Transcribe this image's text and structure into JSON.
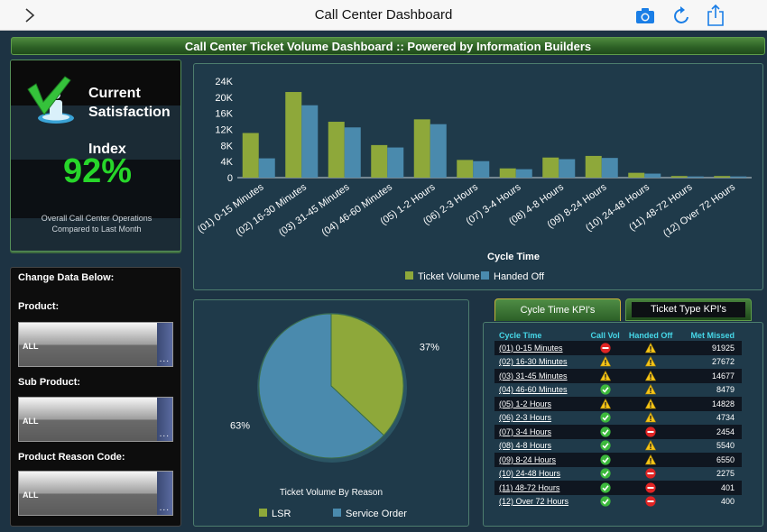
{
  "app": {
    "title": "Call Center Dashboard"
  },
  "banner": {
    "title": "Call Center Ticket Volume Dashboard :: Powered by Information Builders"
  },
  "satisfaction": {
    "line1": "Current",
    "line2": "Satisfaction",
    "line3": "Index",
    "value": "92%",
    "note1": "Overall Call Center Operations",
    "note2": "Compared to Last Month"
  },
  "filters": {
    "heading": "Change Data Below:",
    "product": {
      "label": "Product:",
      "selected": "ALL"
    },
    "sub_product": {
      "label": "Sub Product:",
      "selected": "ALL"
    },
    "reason_code": {
      "label": "Product Reason Code:",
      "selected": "ALL"
    },
    "more": "..."
  },
  "colors": {
    "green": "#8ea83a",
    "blue": "#4a8aad",
    "accent_green": "#27d62a",
    "header_cyan": "#46d7e8"
  },
  "chart_data": [
    {
      "type": "bar",
      "xlabel": "Cycle Time",
      "ylabel": "",
      "ylim": [
        0,
        24000
      ],
      "yticks": [
        "0",
        "4K",
        "8K",
        "12K",
        "16K",
        "20K",
        "24K"
      ],
      "grid": false,
      "legend": "bottom",
      "categories": [
        "(01) 0-15 Minutes",
        "(02) 16-30 Minutes",
        "(03) 31-45 Minutes",
        "(04) 46-60 Minutes",
        "(05) 1-2 Hours",
        "(06) 2-3 Hours",
        "(07) 3-4 Hours",
        "(08) 4-8 Hours",
        "(09) 8-24 Hours",
        "(10) 24-48 Hours",
        "(11) 48-72 Hours",
        "(12) Over 72 Hours"
      ],
      "series": [
        {
          "name": "Ticket Volume",
          "color": "#8ea83a",
          "values": [
            11100,
            21300,
            13900,
            8100,
            14500,
            4400,
            2300,
            5000,
            5400,
            1200,
            400,
            400
          ]
        },
        {
          "name": "Handed Off",
          "color": "#4a8aad",
          "values": [
            4800,
            18000,
            12500,
            7500,
            13300,
            4100,
            2100,
            4600,
            4900,
            1000,
            300,
            300
          ]
        }
      ]
    },
    {
      "type": "pie",
      "title": "Ticket Volume By Reason",
      "legend": "bottom",
      "slices": [
        {
          "name": "LSR",
          "value": 37,
          "label": "37%",
          "color": "#8ea83a"
        },
        {
          "name": "Service Order",
          "value": 63,
          "label": "63%",
          "color": "#4a8aad"
        }
      ]
    }
  ],
  "kpi": {
    "tabs": [
      "Cycle Time KPI's",
      "Ticket Type KPI's"
    ],
    "headers": [
      "Cycle Time",
      "Call Vol",
      "Handed Off",
      "Met Missed"
    ],
    "rows": [
      {
        "cycle": "(01) 0-15 Minutes",
        "call_vol": "stop-icon",
        "handed_off": "warning-icon",
        "met_missed": "91925"
      },
      {
        "cycle": "(02) 16-30 Minutes",
        "call_vol": "warning-icon",
        "handed_off": "warning-icon",
        "met_missed": "27672"
      },
      {
        "cycle": "(03) 31-45 Minutes",
        "call_vol": "warning-icon",
        "handed_off": "warning-icon",
        "met_missed": "14677"
      },
      {
        "cycle": "(04) 46-60 Minutes",
        "call_vol": "check-icon",
        "handed_off": "warning-icon",
        "met_missed": "8479"
      },
      {
        "cycle": "(05) 1-2 Hours",
        "call_vol": "warning-icon",
        "handed_off": "warning-icon",
        "met_missed": "14828"
      },
      {
        "cycle": "(06) 2-3 Hours",
        "call_vol": "check-icon",
        "handed_off": "warning-icon",
        "met_missed": "4734"
      },
      {
        "cycle": "(07) 3-4 Hours",
        "call_vol": "check-icon",
        "handed_off": "stop-icon",
        "met_missed": "2454"
      },
      {
        "cycle": "(08) 4-8 Hours",
        "call_vol": "check-icon",
        "handed_off": "warning-icon",
        "met_missed": "5540"
      },
      {
        "cycle": "(09) 8-24 Hours",
        "call_vol": "check-icon",
        "handed_off": "warning-icon",
        "met_missed": "6550"
      },
      {
        "cycle": "(10) 24-48 Hours",
        "call_vol": "check-icon",
        "handed_off": "stop-icon",
        "met_missed": "2275"
      },
      {
        "cycle": "(11) 48-72 Hours",
        "call_vol": "check-icon",
        "handed_off": "stop-icon",
        "met_missed": "401"
      },
      {
        "cycle": "(12) Over 72 Hours",
        "call_vol": "check-icon",
        "handed_off": "stop-icon",
        "met_missed": "400"
      }
    ]
  },
  "icons": {
    "toggle": "sidebar-toggle-icon",
    "camera": "camera-icon",
    "refresh": "refresh-icon",
    "share": "share-icon"
  }
}
